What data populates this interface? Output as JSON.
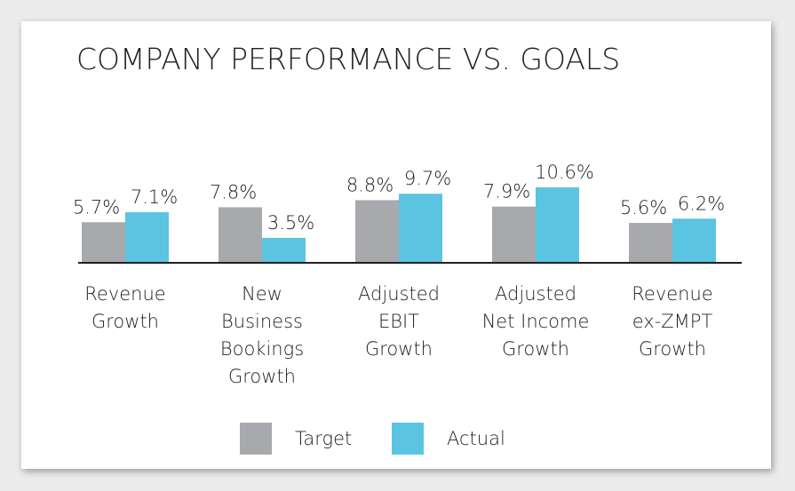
{
  "chart_data": {
    "type": "bar",
    "title": "COMPANY PERFORMANCE VS. GOALS",
    "categories": [
      "Revenue\nGrowth",
      "New\nBusiness\nBookings\nGrowth",
      "Adjusted\nEBIT\nGrowth",
      "Adjusted\nNet Income\nGrowth",
      "Revenue\nex-ZMPT\nGrowth"
    ],
    "series": [
      {
        "name": "Target",
        "color": "#a7a9ac",
        "values": [
          5.7,
          7.8,
          8.8,
          7.9,
          5.6
        ],
        "value_labels": [
          "5.7%",
          "7.8%",
          "8.8%",
          "7.9%",
          "5.6%"
        ]
      },
      {
        "name": "Actual",
        "color": "#5bc4e1",
        "values": [
          7.1,
          3.5,
          9.7,
          10.6,
          6.2
        ],
        "value_labels": [
          "7.1%",
          "3.5%",
          "9.7%",
          "10.6%",
          "6.2%"
        ]
      }
    ],
    "ylim": [
      0,
      13
    ],
    "legend": "bottom"
  }
}
